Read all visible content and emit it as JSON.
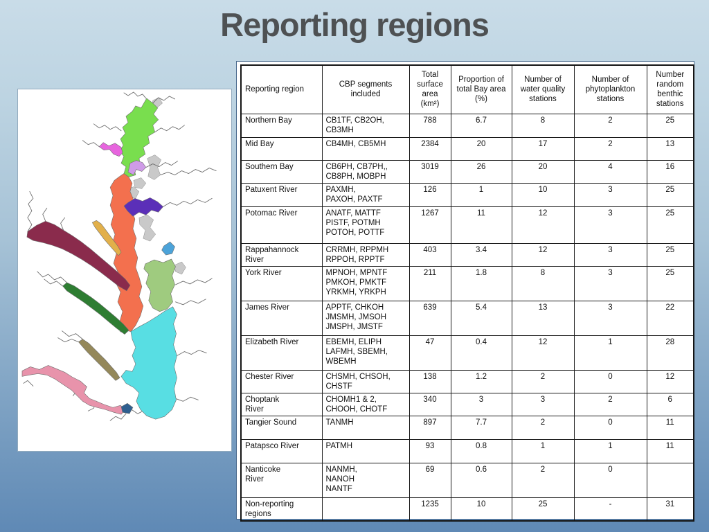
{
  "slide": {
    "title": "Reporting regions",
    "title_color": "#4e5153",
    "background_top": "#c9dce8",
    "background_bottom": "#5f89b5"
  },
  "map": {
    "label": "Chesapeake Bay reporting regions map",
    "coastline_color": "#6e6e6e",
    "regions": [
      {
        "name": "Northern Bay",
        "color": "#79de4e"
      },
      {
        "name": "Patapsco River",
        "color": "#e765de"
      },
      {
        "name": "Chester River",
        "color": "#cf9be8"
      },
      {
        "name": "Mid Bay",
        "color": "#f3704e"
      },
      {
        "name": "Choptank River",
        "color": "#5b2fb8"
      },
      {
        "name": "Patuxent River",
        "color": "#e2b04a"
      },
      {
        "name": "Potomac River",
        "color": "#8a2b4c"
      },
      {
        "name": "Rappahannock River",
        "color": "#2e7d32"
      },
      {
        "name": "York River",
        "color": "#94885a"
      },
      {
        "name": "James River",
        "color": "#e893ab"
      },
      {
        "name": "Elizabeth River",
        "color": "#2f5f8f"
      },
      {
        "name": "Nanticoke River",
        "color": "#4ca3d9"
      },
      {
        "name": "Tangier Sound",
        "color": "#9fcb7f"
      },
      {
        "name": "Southern Bay",
        "color": "#58dee3"
      },
      {
        "name": "Non-reporting regions",
        "color": "#c9c9c9"
      }
    ]
  },
  "table": {
    "headers": [
      "Reporting region",
      "CBP segments included",
      "Total surface area (km²)",
      "Proportion of total Bay area (%)",
      "Number of water quality stations",
      "Number of phytoplankton stations",
      "Number random benthic stations"
    ],
    "rows": [
      {
        "region": "Northern Bay",
        "segments": "CB1TF, CB2OH,\nCB3MH",
        "area": "788",
        "proportion": "6.7",
        "water_quality": "8",
        "phytoplankton": "2",
        "benthic": "25"
      },
      {
        "region": "Mid Bay",
        "segments": "CB4MH, CB5MH",
        "area": "2384",
        "proportion": "20",
        "water_quality": "17",
        "phytoplankton": "2",
        "benthic": "13"
      },
      {
        "region": "Southern Bay",
        "segments": "CB6PH, CB7PH,,\nCB8PH, MOBPH",
        "area": "3019",
        "proportion": "26",
        "water_quality": "20",
        "phytoplankton": "4",
        "benthic": "16"
      },
      {
        "region": "Patuxent River",
        "segments": "PAXMH,\nPAXOH, PAXTF",
        "area": "126",
        "proportion": "1",
        "water_quality": "10",
        "phytoplankton": "3",
        "benthic": "25"
      },
      {
        "region": "Potomac River",
        "segments": "ANATF, MATTF\nPISTF, POTMH\nPOTOH, POTTF",
        "area": "1267",
        "proportion": "11",
        "water_quality": "12",
        "phytoplankton": "3",
        "benthic": "25"
      },
      {
        "region": "Rappahannock\nRiver",
        "segments": "CRRMH, RPPMH\nRPPOH, RPPTF",
        "area": "403",
        "proportion": "3.4",
        "water_quality": "12",
        "phytoplankton": "3",
        "benthic": "25"
      },
      {
        "region": "York River",
        "segments": "MPNOH, MPNTF\nPMKOH, PMKTF\nYRKMH, YRKPH",
        "area": "211",
        "proportion": "1.8",
        "water_quality": "8",
        "phytoplankton": "3",
        "benthic": "25"
      },
      {
        "region": "James River",
        "segments": "APPTF, CHKOH\nJMSMH, JMSOH\nJMSPH, JMSTF",
        "area": "639",
        "proportion": "5.4",
        "water_quality": "13",
        "phytoplankton": "3",
        "benthic": "22"
      },
      {
        "region": "Elizabeth River",
        "segments": "EBEMH, ELIPH\nLAFMH, SBEMH,\nWBEMH",
        "area": "47",
        "proportion": "0.4",
        "water_quality": "12",
        "phytoplankton": "1",
        "benthic": "28"
      },
      {
        "region": "Chester River",
        "segments": "CHSMH, CHSOH,\nCHSTF",
        "area": "138",
        "proportion": "1.2",
        "water_quality": "2",
        "phytoplankton": "0",
        "benthic": "12"
      },
      {
        "region": "Choptank\nRiver",
        "segments": "CHOMH1 & 2,\nCHOOH, CHOTF",
        "area": "340",
        "proportion": "3",
        "water_quality": "3",
        "phytoplankton": "2",
        "benthic": "6"
      },
      {
        "region": "Tangier Sound",
        "segments": "TANMH",
        "area": "897",
        "proportion": "7.7",
        "water_quality": "2",
        "phytoplankton": "0",
        "benthic": "11"
      },
      {
        "region": "Patapsco River",
        "segments": "PATMH",
        "area": "93",
        "proportion": "0.8",
        "water_quality": "1",
        "phytoplankton": "1",
        "benthic": "11"
      },
      {
        "region": "Nanticoke\nRiver",
        "segments": "NANMH,\nNANOH\nNANTF",
        "area": "69",
        "proportion": "0.6",
        "water_quality": "2",
        "phytoplankton": "0",
        "benthic": ""
      },
      {
        "region": "Non-reporting\nregions",
        "segments": "",
        "area": "1235",
        "proportion": "10",
        "water_quality": "25",
        "phytoplankton": "-",
        "benthic": "31"
      }
    ]
  }
}
